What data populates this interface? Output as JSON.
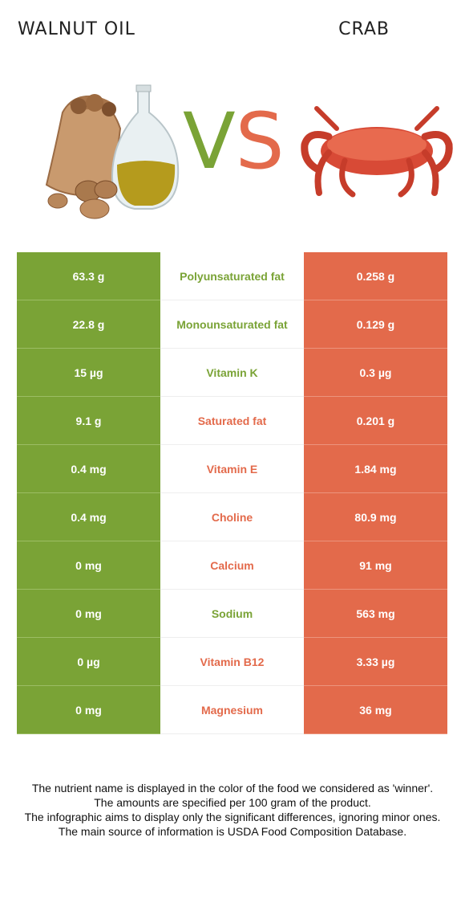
{
  "header": {
    "left_title": "WALNUT OIL",
    "right_title": "CRAB",
    "vs_v": "V",
    "vs_s": "S"
  },
  "colors": {
    "walnut_oil": "#7aa336",
    "crab": "#e36a4b"
  },
  "rows": [
    {
      "left": "63.3 g",
      "name": "Polyunsaturated fat",
      "right": "0.258 g",
      "winner": "left"
    },
    {
      "left": "22.8 g",
      "name": "Monounsaturated fat",
      "right": "0.129 g",
      "winner": "left"
    },
    {
      "left": "15 µg",
      "name": "Vitamin K",
      "right": "0.3 µg",
      "winner": "left"
    },
    {
      "left": "9.1 g",
      "name": "Saturated fat",
      "right": "0.201 g",
      "winner": "right"
    },
    {
      "left": "0.4 mg",
      "name": "Vitamin E",
      "right": "1.84 mg",
      "winner": "right"
    },
    {
      "left": "0.4 mg",
      "name": "Choline",
      "right": "80.9 mg",
      "winner": "right"
    },
    {
      "left": "0 mg",
      "name": "Calcium",
      "right": "91 mg",
      "winner": "right"
    },
    {
      "left": "0 mg",
      "name": "Sodium",
      "right": "563 mg",
      "winner": "left"
    },
    {
      "left": "0 µg",
      "name": "Vitamin B12",
      "right": "3.33 µg",
      "winner": "right"
    },
    {
      "left": "0 mg",
      "name": "Magnesium",
      "right": "36 mg",
      "winner": "right"
    }
  ],
  "notes": [
    "The nutrient name is displayed in the color of the food we considered as 'winner'.",
    "The amounts are specified per 100 gram of the product.",
    "The infographic aims to display only the significant differences, ignoring minor ones.",
    "The main source of information is USDA Food Composition Database."
  ]
}
